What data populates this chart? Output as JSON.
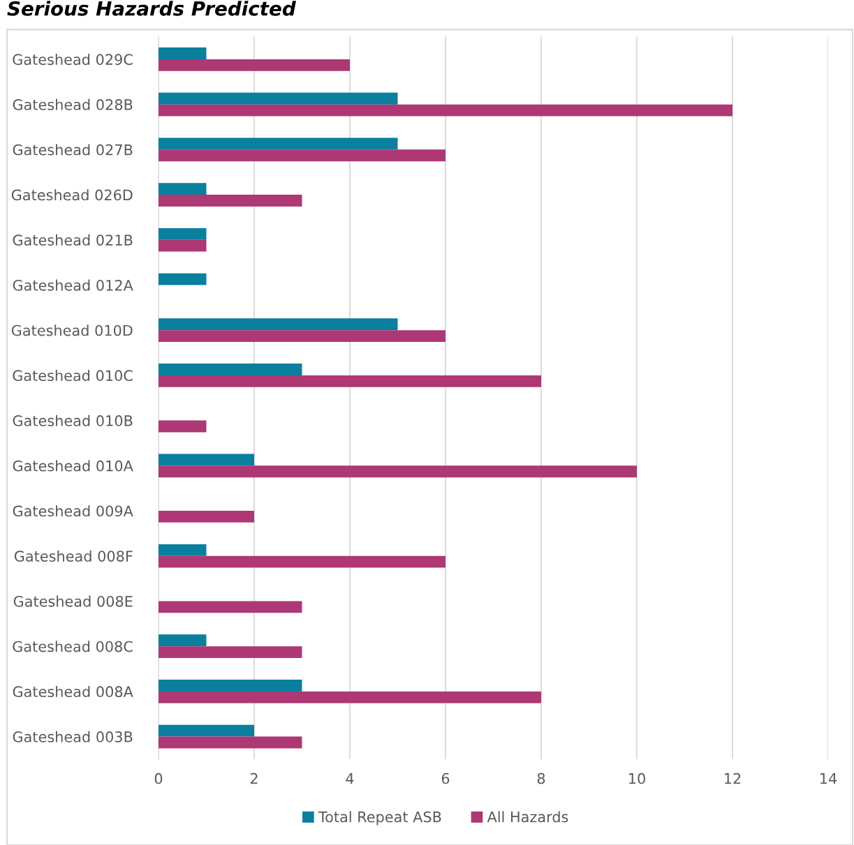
{
  "chart_data": {
    "type": "bar",
    "orientation": "horizontal",
    "title": "Serious Hazards Predicted",
    "categories": [
      "Gateshead 029C",
      "Gateshead 028B",
      "Gateshead 027B",
      "Gateshead 026D",
      "Gateshead 021B",
      "Gateshead 012A",
      "Gateshead 010D",
      "Gateshead 010C",
      "Gateshead 010B",
      "Gateshead 010A",
      "Gateshead 009A",
      "Gateshead 008F",
      "Gateshead 008E",
      "Gateshead 008C",
      "Gateshead 008A",
      "Gateshead 003B"
    ],
    "series": [
      {
        "name": "Total Repeat ASB",
        "color": "#0a7f9e",
        "values": [
          1,
          5,
          5,
          1,
          1,
          1,
          5,
          3,
          0,
          2,
          0,
          1,
          0,
          1,
          3,
          2
        ]
      },
      {
        "name": "All Hazards",
        "color": "#ad3874",
        "values": [
          4,
          12,
          6,
          3,
          1,
          0,
          6,
          8,
          1,
          10,
          2,
          6,
          3,
          3,
          8,
          3
        ]
      }
    ],
    "xlim": [
      0,
      14
    ],
    "xticks": [
      0,
      2,
      4,
      6,
      8,
      10,
      12,
      14
    ],
    "grid": "x",
    "legend": "bottom"
  }
}
